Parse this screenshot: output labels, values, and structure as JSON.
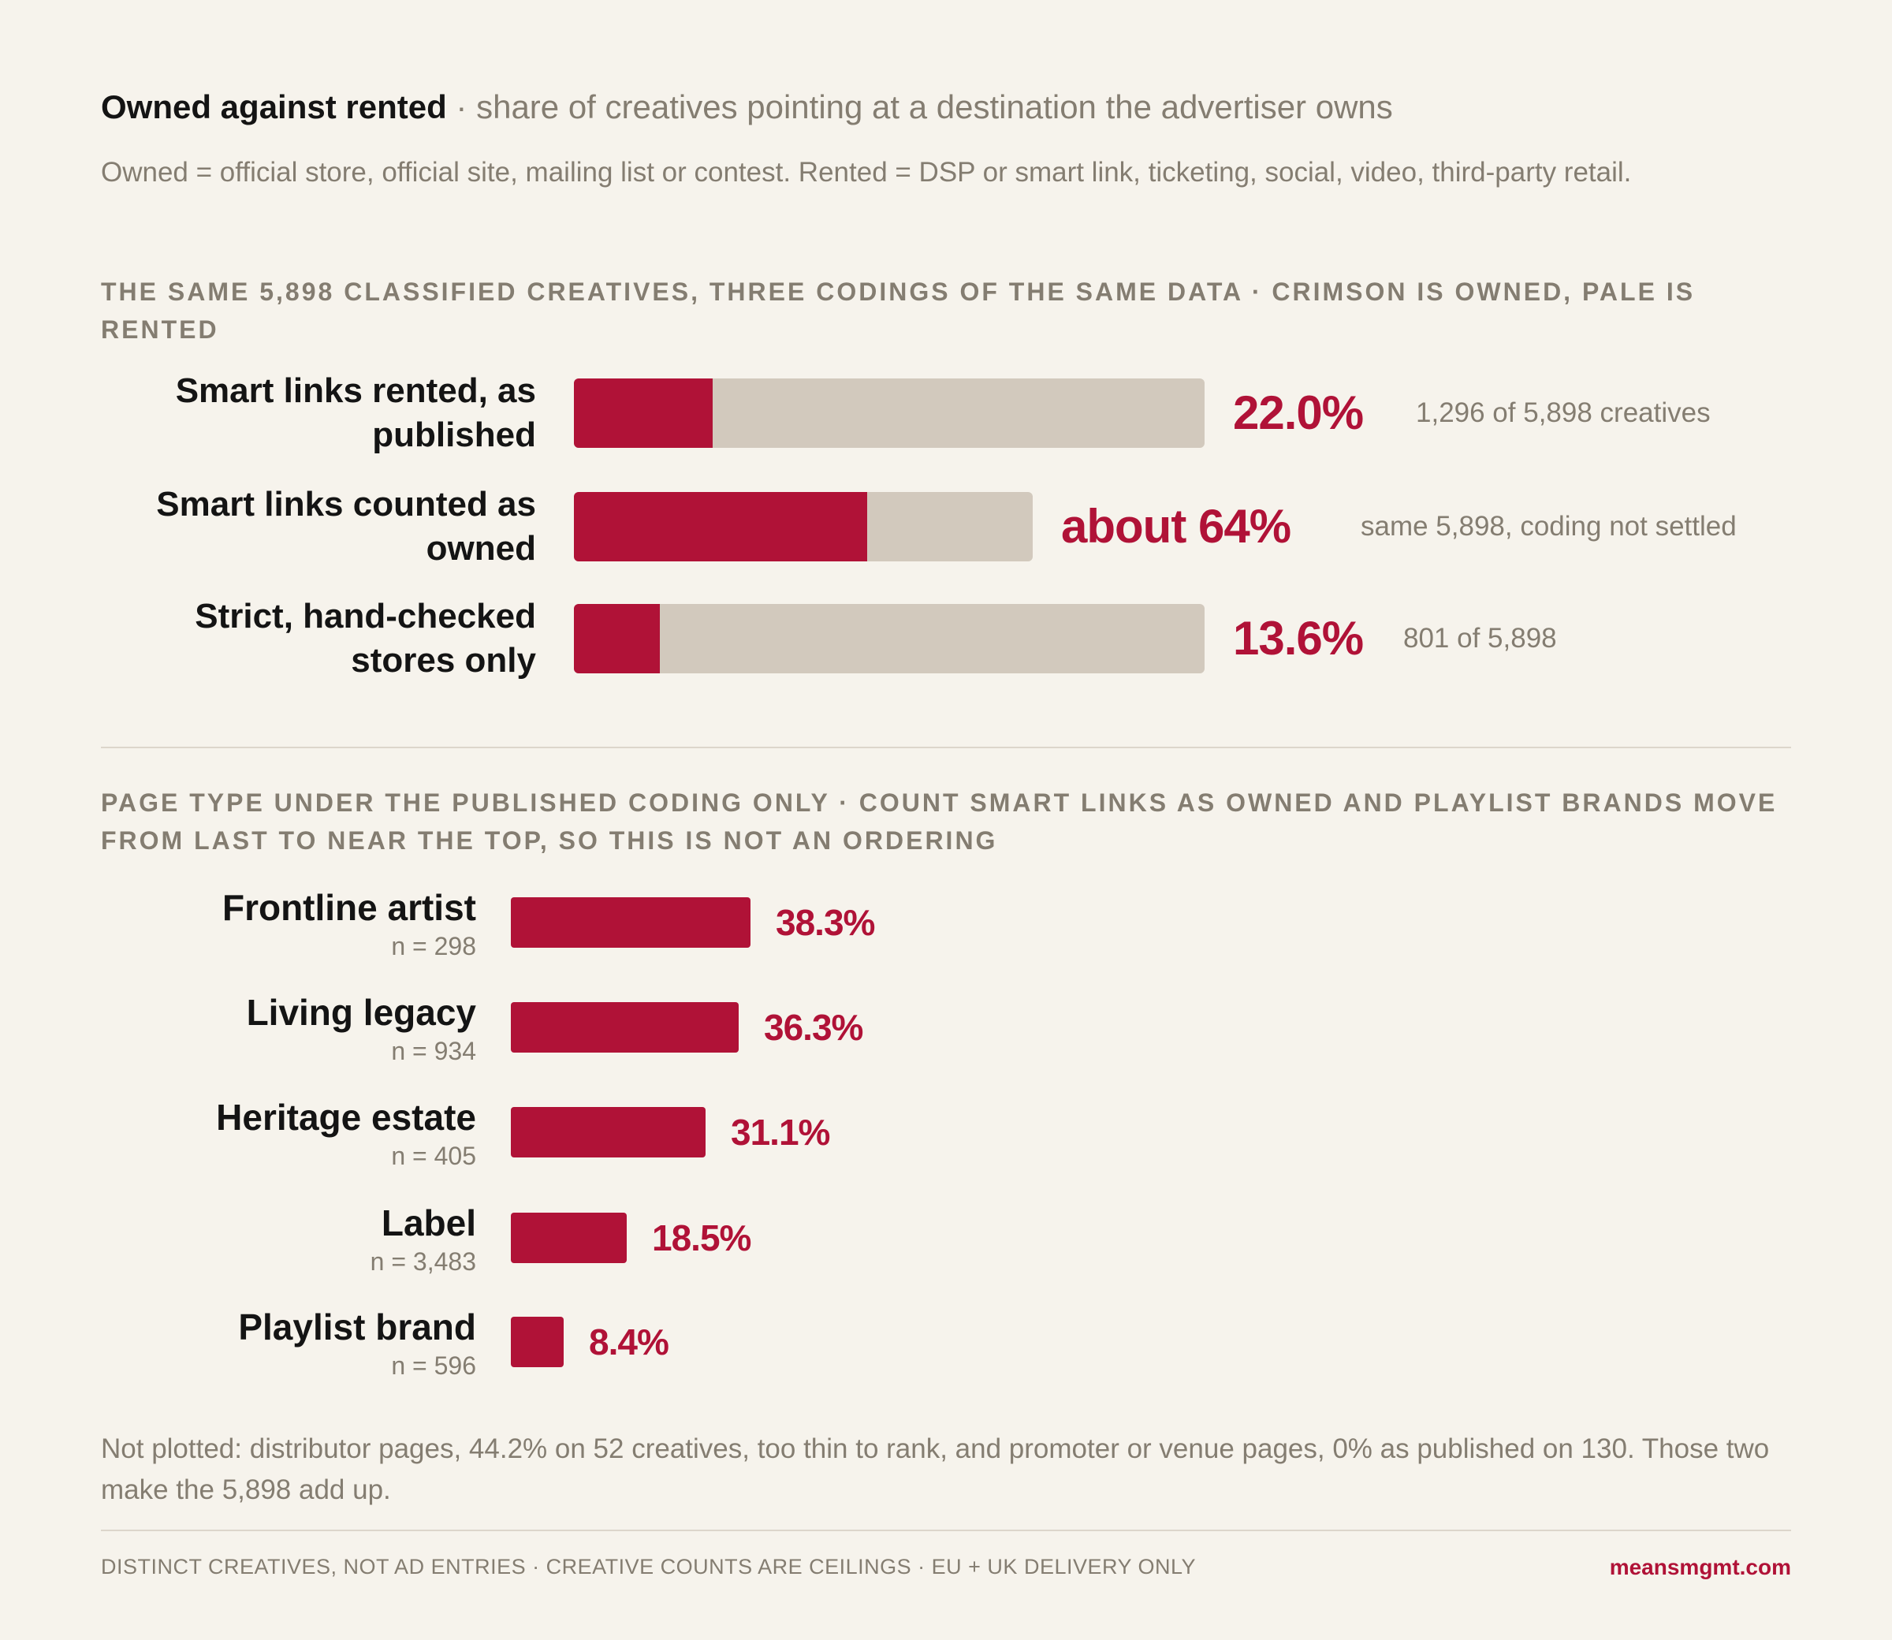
{
  "header": {
    "title": "Owned against rented",
    "separator": "·",
    "subtitle": "share of creatives pointing at a destination the advertiser owns",
    "definition": "Owned = official store, official site, mailing list or contest. Rented = DSP or smart link, ticketing, social, video, third-party retail."
  },
  "section1": {
    "heading": "The same 5,898 classified creatives, three codings of the same data · crimson is owned, pale is rented"
  },
  "section2": {
    "heading": "Page type under the published coding only · count smart links as owned and playlist brands move from last to near the top, so this is not an ordering"
  },
  "footnote": "Not plotted: distributor pages, 44.2% on 52 creatives, too thin to rank, and promoter or venue pages, 0% as published on 130. Those two make the 5,898 add up.",
  "footer": {
    "left": "DISTINCT CREATIVES, NOT AD ENTRIES · CREATIVE COUNTS ARE CEILINGS · EU + UK DELIVERY ONLY",
    "right": "meansmgmt.com"
  },
  "colors": {
    "owned": "#b01237",
    "rented": "#d2c9bd",
    "background": "#f6f3ec",
    "muted": "#847d71"
  },
  "chart_data": [
    {
      "type": "bar",
      "orientation": "horizontal",
      "stacked": true,
      "categories": [
        "Smart links rented, as published",
        "Smart links counted as owned",
        "Strict, hand-checked stores only"
      ],
      "series": [
        {
          "name": "owned",
          "values": [
            22.0,
            64,
            13.6
          ]
        },
        {
          "name": "rented",
          "values": [
            78.0,
            36,
            86.4
          ]
        }
      ],
      "value_labels": [
        "22.0%",
        "about 64%",
        "13.6%"
      ],
      "notes": [
        "1,296 of 5,898 creatives",
        "same 5,898, coding not settled",
        "801 of 5,898"
      ],
      "ylim": [
        0,
        100
      ],
      "track_scale": [
        1,
        0.728,
        1
      ]
    },
    {
      "type": "bar",
      "orientation": "horizontal",
      "categories": [
        "Frontline artist",
        "Living legacy",
        "Heritage estate",
        "Label",
        "Playlist brand"
      ],
      "sample_sizes": [
        "n = 298",
        "n = 934",
        "n = 405",
        "n = 3,483",
        "n = 596"
      ],
      "values": [
        38.3,
        36.3,
        31.1,
        18.5,
        8.4
      ],
      "value_labels": [
        "38.3%",
        "36.3%",
        "31.1%",
        "18.5%",
        "8.4%"
      ],
      "xlim": [
        0,
        100
      ]
    }
  ]
}
